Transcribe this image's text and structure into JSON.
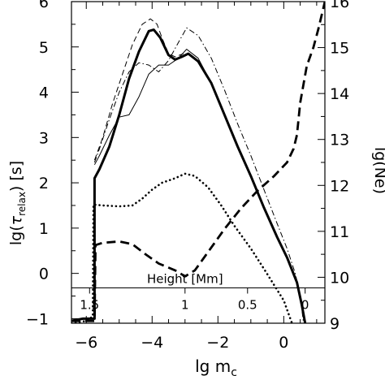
{
  "chart_data": {
    "type": "line",
    "xlabel": "lg m",
    "xlabel_sub": "c",
    "ylabel_left": "lg(",
    "ylabel_left_tau": "τ",
    "ylabel_left_sub": "relax",
    "ylabel_left_unit": ")   [s]",
    "ylabel_right": "lg(Ne)",
    "inner_axis_label": "Height [Mm]",
    "xlim": [
      -6.45,
      1.25
    ],
    "ylim": [
      -1.1,
      6.0
    ],
    "y2lim": [
      9.0,
      16.0
    ],
    "x_ticks": [
      -6,
      -4,
      -2,
      0
    ],
    "x_tick_labels": [
      "−6",
      "−4",
      "−2",
      "0"
    ],
    "y_ticks": [
      -1,
      0,
      1,
      2,
      3,
      4,
      5,
      6
    ],
    "y_tick_labels": [
      "−1",
      "0",
      "1",
      "2",
      "3",
      "4",
      "5",
      "6"
    ],
    "y2_ticks": [
      9,
      10,
      11,
      12,
      13,
      14,
      15,
      16
    ],
    "y2_tick_labels": [
      "9",
      "10",
      "11",
      "12",
      "13",
      "14",
      "15",
      "16"
    ],
    "inner_ticks": [
      {
        "x": -5.9,
        "label": "1.5"
      },
      {
        "x": -3.0,
        "label": "1"
      },
      {
        "x": -1.1,
        "label": "0.5"
      },
      {
        "x": 0.65,
        "label": "0"
      }
    ],
    "series": [
      {
        "style": "thick-solid",
        "axis": "left",
        "points": [
          [
            -6.45,
            -1.05
          ],
          [
            -6.1,
            -1.0
          ],
          [
            -5.75,
            -1.0
          ],
          [
            -5.75,
            2.1
          ],
          [
            -5.6,
            2.3
          ],
          [
            -5.3,
            2.8
          ],
          [
            -5.0,
            3.5
          ],
          [
            -4.7,
            4.3
          ],
          [
            -4.4,
            4.9
          ],
          [
            -4.1,
            5.35
          ],
          [
            -3.95,
            5.38
          ],
          [
            -3.75,
            5.2
          ],
          [
            -3.5,
            4.82
          ],
          [
            -3.3,
            4.72
          ],
          [
            -3.1,
            4.78
          ],
          [
            -2.9,
            4.85
          ],
          [
            -2.6,
            4.68
          ],
          [
            -2.2,
            4.2
          ],
          [
            -1.8,
            3.5
          ],
          [
            -1.4,
            2.8
          ],
          [
            -1.0,
            2.15
          ],
          [
            -0.6,
            1.45
          ],
          [
            -0.2,
            0.8
          ],
          [
            0.1,
            0.35
          ],
          [
            0.4,
            -0.2
          ],
          [
            0.55,
            -0.7
          ],
          [
            0.65,
            -1.1
          ]
        ]
      },
      {
        "style": "thin-solid",
        "axis": "left",
        "points": [
          [
            -5.75,
            2.4
          ],
          [
            -5.6,
            2.6
          ],
          [
            -5.3,
            3.05
          ],
          [
            -5.0,
            3.45
          ],
          [
            -4.7,
            3.5
          ],
          [
            -4.4,
            3.9
          ],
          [
            -4.1,
            4.4
          ],
          [
            -3.8,
            4.6
          ],
          [
            -3.5,
            4.6
          ],
          [
            -3.2,
            4.75
          ],
          [
            -2.95,
            4.95
          ],
          [
            -2.6,
            4.75
          ],
          [
            -2.2,
            4.2
          ],
          [
            -1.8,
            3.5
          ],
          [
            -1.4,
            2.8
          ],
          [
            -1.0,
            2.15
          ],
          [
            -0.6,
            1.45
          ],
          [
            -0.2,
            0.8
          ],
          [
            0.1,
            0.35
          ],
          [
            0.4,
            -0.2
          ],
          [
            0.55,
            -0.7
          ],
          [
            0.65,
            -1.1
          ]
        ]
      },
      {
        "style": "dash-dot",
        "axis": "left",
        "points": [
          [
            -5.75,
            2.45
          ],
          [
            -5.6,
            2.75
          ],
          [
            -5.3,
            3.4
          ],
          [
            -5.0,
            4.0
          ],
          [
            -4.7,
            4.45
          ],
          [
            -4.4,
            4.65
          ],
          [
            -4.1,
            4.6
          ],
          [
            -3.8,
            4.45
          ],
          [
            -3.5,
            4.7
          ],
          [
            -3.2,
            5.1
          ],
          [
            -2.95,
            5.42
          ],
          [
            -2.6,
            5.25
          ],
          [
            -2.2,
            4.75
          ],
          [
            -1.8,
            4.05
          ],
          [
            -1.4,
            3.3
          ],
          [
            -1.0,
            2.6
          ],
          [
            -0.6,
            1.85
          ],
          [
            -0.2,
            1.1
          ],
          [
            0.1,
            0.55
          ],
          [
            0.35,
            0.0
          ],
          [
            0.5,
            -0.5
          ],
          [
            0.6,
            -1.1
          ]
        ]
      },
      {
        "style": "long-dash",
        "axis": "left",
        "points": [
          [
            -5.75,
            2.5
          ],
          [
            -5.5,
            3.0
          ],
          [
            -5.2,
            3.75
          ],
          [
            -4.9,
            4.4
          ],
          [
            -4.6,
            5.05
          ],
          [
            -4.3,
            5.5
          ],
          [
            -4.05,
            5.62
          ],
          [
            -3.85,
            5.5
          ],
          [
            -3.7,
            5.2
          ],
          [
            -3.5,
            4.85
          ],
          [
            -3.3,
            4.78
          ],
          [
            -3.05,
            4.85
          ]
        ]
      },
      {
        "style": "dotted",
        "axis": "left",
        "points": [
          [
            -6.45,
            -1.1
          ],
          [
            -6.0,
            -1.05
          ],
          [
            -5.8,
            -0.95
          ],
          [
            -5.78,
            1.52
          ],
          [
            -5.5,
            1.5
          ],
          [
            -5.0,
            1.48
          ],
          [
            -4.6,
            1.5
          ],
          [
            -4.3,
            1.65
          ],
          [
            -4.0,
            1.85
          ],
          [
            -3.7,
            2.0
          ],
          [
            -3.3,
            2.1
          ],
          [
            -3.0,
            2.2
          ],
          [
            -2.7,
            2.15
          ],
          [
            -2.3,
            1.9
          ],
          [
            -1.9,
            1.5
          ],
          [
            -1.5,
            1.05
          ],
          [
            -1.0,
            0.55
          ],
          [
            -0.6,
            0.1
          ],
          [
            -0.3,
            -0.25
          ],
          [
            0.0,
            -0.6
          ],
          [
            0.15,
            -0.9
          ],
          [
            0.25,
            -1.1
          ]
        ]
      },
      {
        "style": "thick-dash",
        "axis": "right",
        "points": [
          [
            -6.45,
            9.05
          ],
          [
            -5.75,
            9.05
          ],
          [
            -5.72,
            10.7
          ],
          [
            -5.5,
            10.75
          ],
          [
            -5.0,
            10.78
          ],
          [
            -4.6,
            10.72
          ],
          [
            -4.2,
            10.5
          ],
          [
            -3.8,
            10.3
          ],
          [
            -3.3,
            10.15
          ],
          [
            -3.0,
            10.02
          ],
          [
            -2.7,
            10.15
          ],
          [
            -2.3,
            10.55
          ],
          [
            -1.8,
            11.05
          ],
          [
            -1.3,
            11.5
          ],
          [
            -0.8,
            11.88
          ],
          [
            -0.3,
            12.2
          ],
          [
            0.1,
            12.5
          ],
          [
            0.3,
            12.8
          ],
          [
            0.4,
            13.1
          ],
          [
            0.5,
            13.8
          ],
          [
            0.7,
            14.6
          ],
          [
            0.9,
            15.0
          ],
          [
            1.05,
            15.4
          ],
          [
            1.25,
            16.0
          ]
        ]
      }
    ]
  }
}
